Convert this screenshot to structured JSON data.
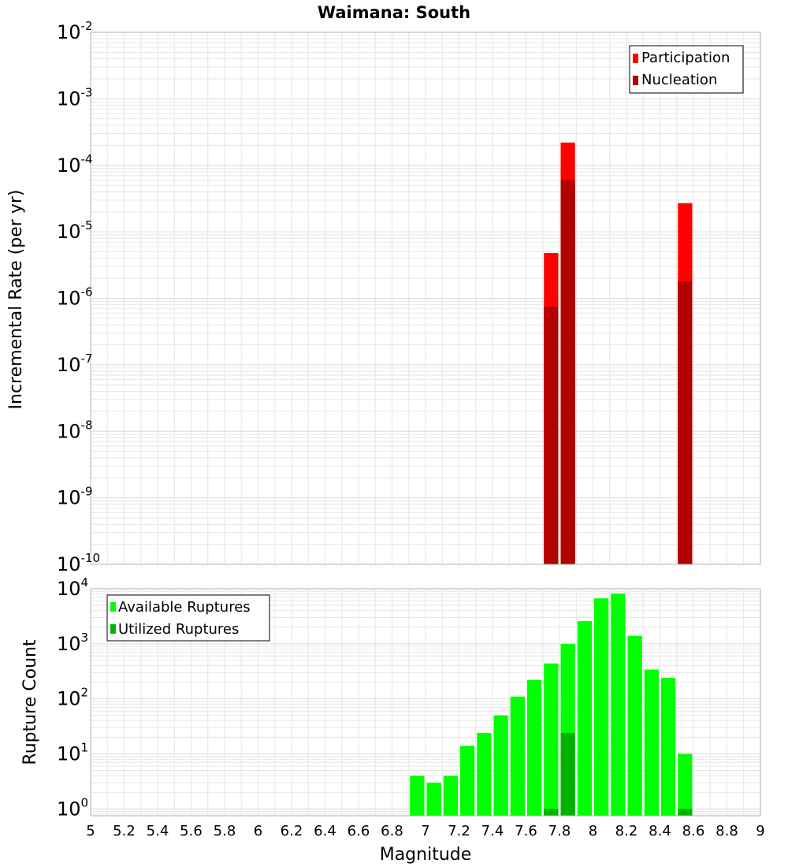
{
  "colors": {
    "participation": "#ff0000",
    "nucleation": "#b30000",
    "available": "#00ff00",
    "utilized": "#00b300",
    "grid": "#e6e6e6",
    "frame": "#b0b0b0"
  },
  "chart_data": [
    {
      "type": "bar",
      "title": "Waimana: South",
      "ylabel": "Incremental Rate (per yr)",
      "xlabel": "",
      "yscale": "log",
      "ylim": [
        1e-10,
        0.01
      ],
      "xlim": [
        5,
        9
      ],
      "y_tick_exponents": [
        -2,
        -3,
        -4,
        -5,
        -6,
        -7,
        -8,
        -9,
        -10
      ],
      "bin_width": 0.1,
      "grid": true,
      "legend_position": "top-right",
      "legend": [
        "Participation",
        "Nucleation"
      ],
      "series": [
        {
          "name": "Participation",
          "x": [
            7.75,
            7.85,
            8.55
          ],
          "values": [
            4.8e-06,
            0.00022,
            2.7e-05
          ]
        },
        {
          "name": "Nucleation",
          "x": [
            7.75,
            7.85,
            8.55
          ],
          "values": [
            7.5e-07,
            6e-05,
            1.8e-06
          ]
        }
      ]
    },
    {
      "type": "bar",
      "title": "",
      "ylabel": "Rupture Count",
      "xlabel": "Magnitude",
      "yscale": "log",
      "ylim": [
        0.75,
        10000
      ],
      "xlim": [
        5,
        9
      ],
      "y_tick_exponents": [
        4,
        3,
        2,
        1,
        0
      ],
      "x_ticks": [
        "5",
        "5.2",
        "5.4",
        "5.6",
        "5.8",
        "6",
        "6.2",
        "6.4",
        "6.6",
        "6.8",
        "7",
        "7.2",
        "7.4",
        "7.6",
        "7.8",
        "8",
        "8.2",
        "8.4",
        "8.6",
        "8.8",
        "9"
      ],
      "bin_width": 0.1,
      "grid": true,
      "legend_position": "top-left",
      "legend": [
        "Available Ruptures",
        "Utilized Ruptures"
      ],
      "series": [
        {
          "name": "Available Ruptures",
          "x": [
            6.95,
            7.05,
            7.15,
            7.25,
            7.35,
            7.45,
            7.55,
            7.65,
            7.75,
            7.85,
            7.95,
            8.05,
            8.15,
            8.25,
            8.35,
            8.45,
            8.55
          ],
          "values": [
            4,
            3,
            4,
            14,
            24,
            50,
            110,
            220,
            440,
            1000,
            2600,
            6700,
            8200,
            1400,
            340,
            240,
            10
          ]
        },
        {
          "name": "Utilized Ruptures",
          "x": [
            7.75,
            7.85,
            8.55
          ],
          "values": [
            1,
            24,
            1
          ]
        }
      ]
    }
  ]
}
